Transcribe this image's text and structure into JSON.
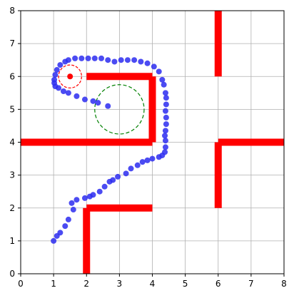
{
  "chart_data": {
    "type": "scatter",
    "title": "",
    "xlabel": "",
    "ylabel": "",
    "xlim": [
      0,
      8
    ],
    "ylim": [
      0,
      8
    ],
    "grid": true,
    "aspect": "equal",
    "x_ticks": [
      "0",
      "1",
      "2",
      "3",
      "4",
      "5",
      "6",
      "7",
      "8"
    ],
    "y_ticks": [
      "0",
      "1",
      "2",
      "3",
      "4",
      "5",
      "6",
      "7",
      "8"
    ],
    "colors": {
      "trajectory": "#2b2bf0",
      "walls": "#ff0000",
      "target_circle": "#008000",
      "agent_circle": "#ff0000",
      "agent_point": "#ff0000"
    },
    "walls": [
      {
        "x": [
          0,
          4
        ],
        "y": [
          4,
          4
        ]
      },
      {
        "x": [
          4,
          4
        ],
        "y": [
          4,
          6
        ]
      },
      {
        "x": [
          2,
          4
        ],
        "y": [
          6,
          6
        ]
      },
      {
        "x": [
          2,
          2
        ],
        "y": [
          0,
          2
        ]
      },
      {
        "x": [
          2,
          4
        ],
        "y": [
          2,
          2
        ]
      },
      {
        "x": [
          6,
          6
        ],
        "y": [
          6,
          8
        ]
      },
      {
        "x": [
          6,
          6
        ],
        "y": [
          2,
          4
        ]
      },
      {
        "x": [
          6,
          8
        ],
        "y": [
          4,
          4
        ]
      }
    ],
    "target_circle": {
      "cx": 3.0,
      "cy": 5.0,
      "r": 0.75,
      "style": "dashed"
    },
    "agent_circle": {
      "cx": 1.5,
      "cy": 6.0,
      "r": 0.35,
      "style": "dashed"
    },
    "agent_point": {
      "x": 1.5,
      "y": 6.0
    },
    "trajectory": {
      "x": [
        1.0,
        1.1,
        1.2,
        1.35,
        1.45,
        1.6,
        1.55,
        1.7,
        1.95,
        2.1,
        2.2,
        2.4,
        2.55,
        2.7,
        2.8,
        2.95,
        3.2,
        3.35,
        3.55,
        3.7,
        3.85,
        4.0,
        4.2,
        4.3,
        4.38,
        4.4,
        4.4,
        4.38,
        4.4,
        4.42,
        4.42,
        4.4,
        4.42,
        4.42,
        4.4,
        4.35,
        4.3,
        4.2,
        4.05,
        3.85,
        3.65,
        3.45,
        3.25,
        3.05,
        2.85,
        2.65,
        2.45,
        2.25,
        2.05,
        1.85,
        1.65,
        1.45,
        1.35,
        1.2,
        1.1,
        1.05,
        1.02,
        1.02,
        1.05,
        1.15,
        1.3,
        1.45,
        1.7,
        1.95,
        2.2,
        2.35,
        2.65
      ],
      "y": [
        1.0,
        1.15,
        1.25,
        1.45,
        1.65,
        1.95,
        2.15,
        2.25,
        2.3,
        2.35,
        2.4,
        2.5,
        2.65,
        2.8,
        2.85,
        2.95,
        3.05,
        3.2,
        3.3,
        3.4,
        3.45,
        3.5,
        3.55,
        3.6,
        3.7,
        3.85,
        4.05,
        4.2,
        4.35,
        4.55,
        4.75,
        4.95,
        5.15,
        5.35,
        5.5,
        5.75,
        5.9,
        6.15,
        6.3,
        6.4,
        6.45,
        6.5,
        6.5,
        6.5,
        6.45,
        6.5,
        6.55,
        6.55,
        6.55,
        6.55,
        6.55,
        6.5,
        6.45,
        6.35,
        6.2,
        6.05,
        5.9,
        5.8,
        5.7,
        5.65,
        5.55,
        5.5,
        5.4,
        5.3,
        5.25,
        5.2,
        5.1
      ]
    }
  }
}
